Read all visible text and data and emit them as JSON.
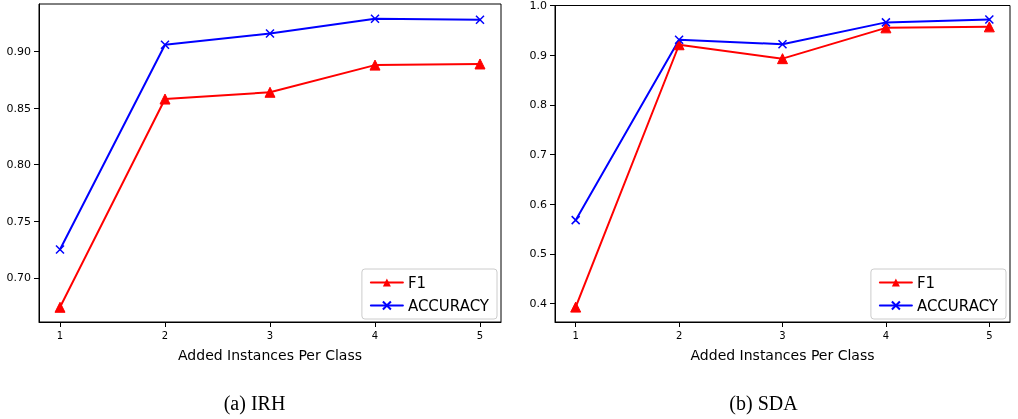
{
  "chart_data": [
    {
      "type": "line",
      "xlabel": "Added Instances Per Class",
      "annotations": [
        "(a) IRH"
      ],
      "x": [
        1,
        2,
        3,
        4,
        5
      ],
      "xlim": [
        0.8,
        5.2
      ],
      "xticks": [
        1,
        2,
        3,
        4,
        5
      ],
      "ylim": [
        0.661,
        0.942
      ],
      "yticks": [
        {
          "value": 0.7,
          "label": "0.70"
        },
        {
          "value": 0.75,
          "label": "0.75"
        },
        {
          "value": 0.8,
          "label": "0.80"
        },
        {
          "value": 0.85,
          "label": "0.85"
        },
        {
          "value": 0.9,
          "label": "0.90"
        }
      ],
      "grid": false,
      "legend": "bottom right",
      "line_style": "solid",
      "series": [
        {
          "name": "F1",
          "color": "#ff0000",
          "marker": "triangle",
          "values": [
            0.674,
            0.858,
            0.864,
            0.888,
            0.889
          ]
        },
        {
          "name": "ACCURACY",
          "color": "#0000ff",
          "marker": "cross",
          "values": [
            0.725,
            0.906,
            0.916,
            0.929,
            0.928
          ]
        }
      ]
    },
    {
      "type": "line",
      "xlabel": "Added Instances Per Class",
      "annotations": [
        "(b) SDA"
      ],
      "x": [
        1,
        2,
        3,
        4,
        5
      ],
      "xlim": [
        0.8,
        5.2
      ],
      "xticks": [
        1,
        2,
        3,
        4,
        5
      ],
      "ylim": [
        0.363,
        1.0
      ],
      "yticks": [
        {
          "value": 0.4,
          "label": "0.4"
        },
        {
          "value": 0.5,
          "label": "0.5"
        },
        {
          "value": 0.6,
          "label": "0.6"
        },
        {
          "value": 0.7,
          "label": "0.7"
        },
        {
          "value": 0.8,
          "label": "0.8"
        },
        {
          "value": 0.9,
          "label": "0.9"
        },
        {
          "value": 1.0,
          "label": "1.0"
        }
      ],
      "grid": false,
      "legend": "bottom right",
      "line_style": "solid",
      "series": [
        {
          "name": "F1",
          "color": "#ff0000",
          "marker": "triangle",
          "values": [
            0.393,
            0.921,
            0.893,
            0.955,
            0.957
          ]
        },
        {
          "name": "ACCURACY",
          "color": "#0000ff",
          "marker": "cross",
          "values": [
            0.568,
            0.931,
            0.922,
            0.966,
            0.972
          ]
        }
      ]
    }
  ]
}
